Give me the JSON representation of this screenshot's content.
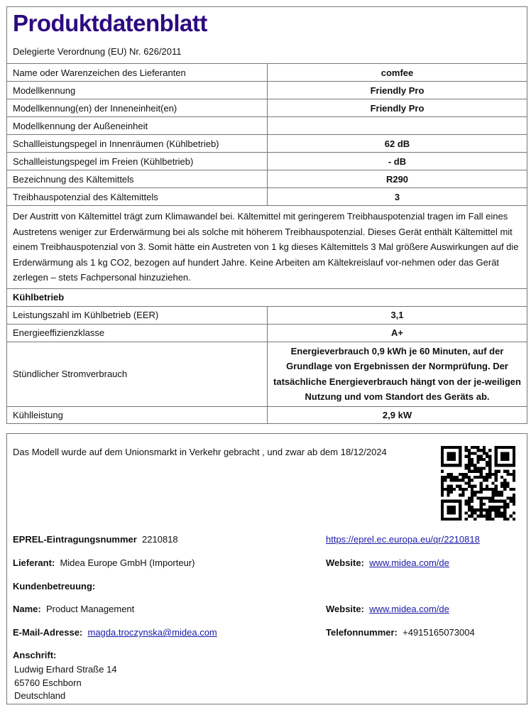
{
  "header": {
    "title": "Produktdatenblatt",
    "regulation": "Delegierte Verordnung (EU) Nr. 626/2011"
  },
  "rows1": [
    {
      "label": "Name oder Warenzeichen des Lieferanten",
      "value": "comfee"
    },
    {
      "label": "Modellkennung",
      "value": "Friendly Pro"
    },
    {
      "label": "Modellkennung(en) der Inneneinheit(en)",
      "value": "Friendly Pro"
    },
    {
      "label": "Modellkennung der Außeneinheit",
      "value": ""
    },
    {
      "label": "Schallleistungspegel in Innenräumen (Kühlbetrieb)",
      "value": "62 dB"
    },
    {
      "label": "Schallleistungspegel im Freien (Kühlbetrieb)",
      "value": "- dB"
    },
    {
      "label": "Bezeichnung des Kältemittels",
      "value": "R290"
    },
    {
      "label": "Treibhauspotenzial des Kältemittels",
      "value": "3"
    }
  ],
  "paragraph": "Der Austritt von Kältemittel trägt zum Klimawandel bei. Kältemittel mit geringerem Treibhauspotenzial tragen im Fall eines Austretens weniger zur Erderwärmung bei als solche mit höherem Treibhauspotenzial. Dieses Gerät enthält Kältemittel mit einem Treibhauspotenzial von 3. Somit hätte ein Austreten von 1 kg dieses Kältemittels 3 Mal größere Auswirkungen auf die Erderwärmung als 1 kg CO2, bezogen auf hundert Jahre. Keine Arbeiten am Kältekreislauf vor-nehmen oder das Gerät zerlegen – stets Fachpersonal hinzuziehen.",
  "section": "Kühlbetrieb",
  "rows2": [
    {
      "label": "Leistungszahl im Kühlbetrieb (EER)",
      "value": "3,1"
    },
    {
      "label": "Energieeffizienzklasse",
      "value": "A+"
    },
    {
      "label": "Stündlicher Stromverbrauch",
      "value": "Energieverbrauch 0,9 kWh je 60 Minuten, auf der Grundlage von Ergebnissen der Normprüfung. Der tatsächliche Energieverbrauch hängt von der je-weiligen Nutzung und vom Standort des Geräts ab."
    },
    {
      "label": "Kühlleistung",
      "value": "2,9 kW"
    }
  ],
  "footer": {
    "market": "Das Modell wurde auf dem Unionsmarkt in Verkehr gebracht , und zwar ab dem 18/12/2024",
    "eprel_label": "EPREL-Eintragungsnummer",
    "eprel_value": "2210818",
    "eprel_link": "https://eprel.ec.europa.eu/qr/2210818",
    "supplier_label": "Lieferant:",
    "supplier_value": "Midea Europe GmbH (Importeur)",
    "website_label": "Website:",
    "website_value": "www.midea.com/de",
    "support_label": "Kundenbetreuung:",
    "name_label": "Name:",
    "name_value": "Product Management",
    "website2_label": "Website:",
    "website2_value": "www.midea.com/de",
    "email_label": "E-Mail-Adresse:",
    "email_value": "magda.troczynska@midea.com",
    "phone_label": "Telefonnummer:",
    "phone_value": "+4915165073004",
    "address_label": "Anschrift:",
    "address": [
      "Ludwig Erhard Straße 14",
      "65760  Eschborn",
      "Deutschland"
    ]
  },
  "colors": {
    "title": "#2d0b7e",
    "link": "#1a1aa8"
  }
}
